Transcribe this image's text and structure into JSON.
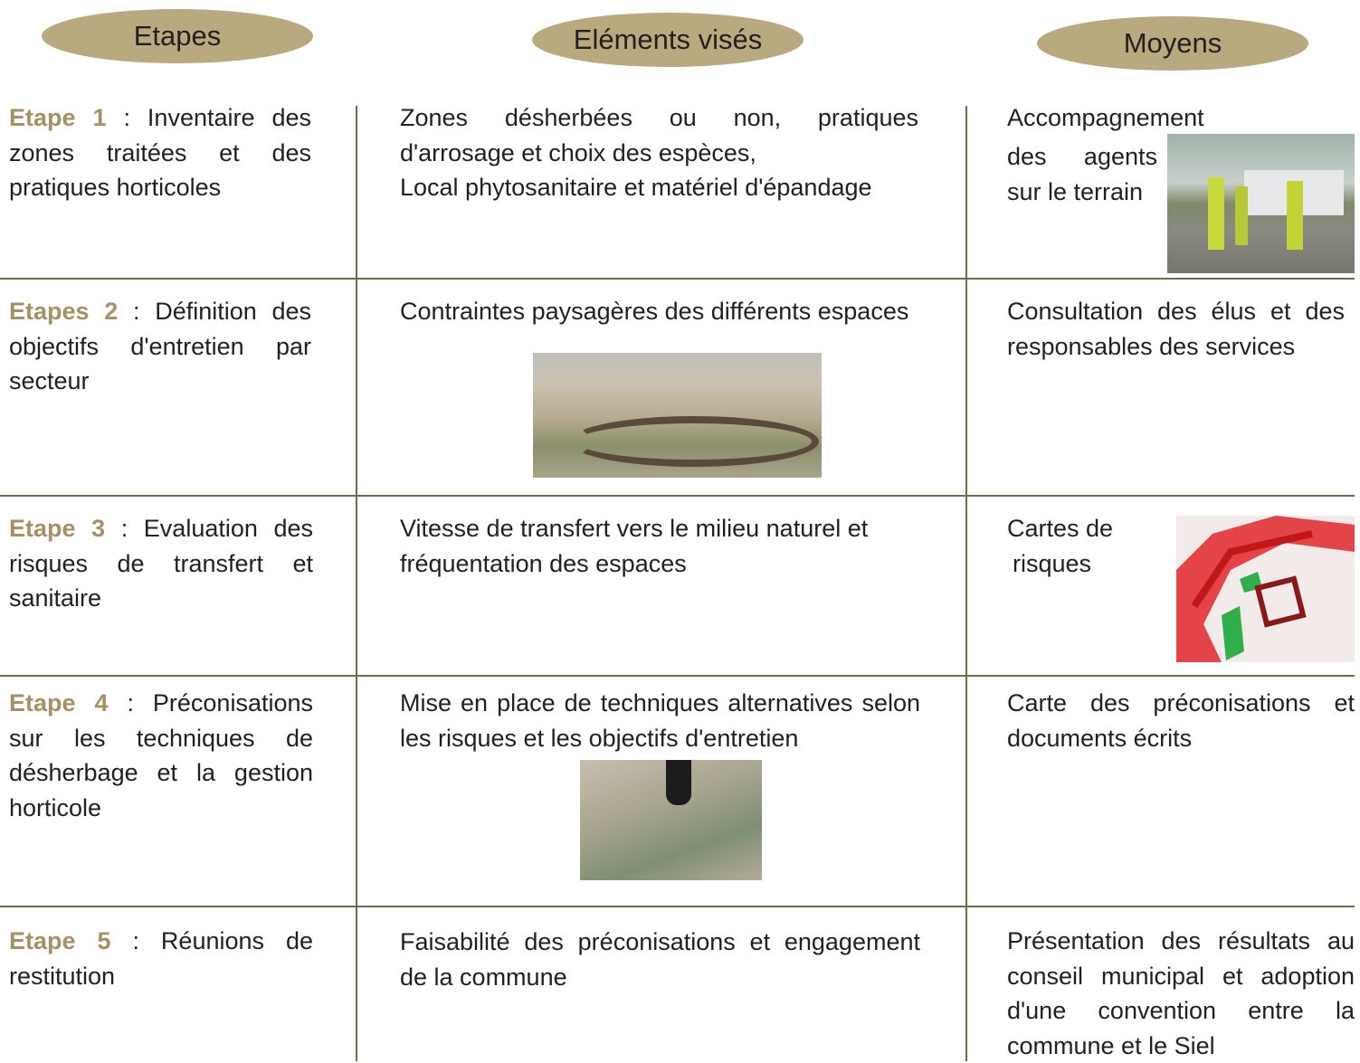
{
  "header": {
    "columns": [
      "Etapes",
      "Eléments visés",
      "Moyens"
    ]
  },
  "table": {
    "rows": [
      {
        "step": "Etape 1",
        "description": ": Inventaire des zones traitées et des pratiques horticoles",
        "elements": [
          "Zones désherbées ou non, pratiques d'arrosage et choix des espèces,",
          "Local phytosanitaire et matériel d'épandage"
        ],
        "means": [
          "Accompagnement",
          "des agents sur le terrain"
        ]
      },
      {
        "step": "Etapes 2",
        "description": ": Définition des objectifs d'entretien par secteur",
        "elements": [
          "Contraintes paysagères des différents espaces"
        ],
        "means": [
          "Consultation des élus et des responsables des services"
        ]
      },
      {
        "step": "Etape 3",
        "description": ": Evaluation des risques de transfert et sanitaire",
        "elements": [
          "Vitesse de transfert vers le milieu naturel et fréquentation des espaces"
        ],
        "means": [
          "Cartes de",
          "risques"
        ]
      },
      {
        "step": "Etape 4",
        "description": ": Préconisations sur les techniques de désherbage et la gestion horticole",
        "elements": [
          "Mise en place de techniques alternatives selon les risques et les objectifs d'entretien"
        ],
        "means": [
          "Carte des préconisations et documents écrits"
        ]
      },
      {
        "step": "Etape 5",
        "description": ": Réunions de restitution",
        "elements": [
          "Faisabilité des préconisations et engagement de la commune"
        ],
        "means": [
          "Présentation des résultats au conseil municipal et adoption d'une convention entre la commune et le Siel"
        ]
      }
    ]
  }
}
